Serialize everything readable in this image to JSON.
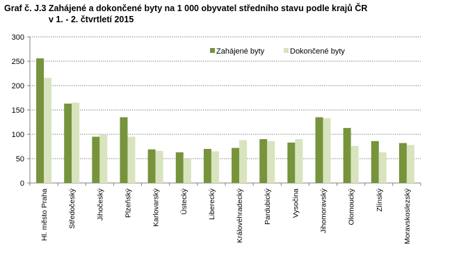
{
  "chart_data": {
    "type": "bar",
    "title": "Graf č. J.3 Zahájené a dokončené byty na 1 000 obyvatel středního stavu podle krajů ČR",
    "subtitle": "v 1. - 2. čtvrtletí 2015",
    "xlabel": "",
    "ylabel": "",
    "ylim": [
      0,
      300
    ],
    "yticks": [
      "0",
      "50",
      "100",
      "150",
      "200",
      "250",
      "300"
    ],
    "grid": true,
    "legend": "top-right",
    "categories": [
      "Hl. město Praha",
      "Středočeský",
      "Jihočeský",
      "Plzeňský",
      "Karlovarský",
      "Ústecký",
      "Liberecký",
      "Královéhradecký",
      "Pardubický",
      "Vysočina",
      "Jihomoravský",
      "Olomoucký",
      "Zlínský",
      "Moravskoslezský"
    ],
    "series": [
      {
        "name": "Zahájené byty",
        "color": "#77933c",
        "values": [
          256,
          163,
          95,
          135,
          69,
          63,
          70,
          72,
          90,
          83,
          135,
          113,
          86,
          82
        ]
      },
      {
        "name": "Dokončené byty",
        "color": "#d7e4bd",
        "values": [
          216,
          165,
          100,
          95,
          66,
          49,
          65,
          88,
          86,
          90,
          133,
          76,
          63,
          78
        ]
      }
    ]
  }
}
